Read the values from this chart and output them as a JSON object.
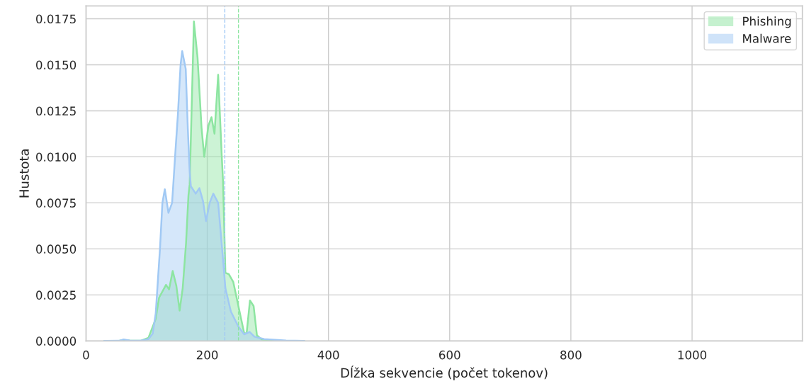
{
  "chart_data": {
    "type": "area",
    "xlabel": "Dĺžka sekvencie (počet tokenov)",
    "ylabel": "Hustota",
    "xlim": [
      0,
      1182
    ],
    "ylim": [
      0,
      0.0182
    ],
    "xticks": [
      0,
      200,
      400,
      600,
      800,
      1000
    ],
    "yticks": [
      {
        "value": 0,
        "label": "0.0000"
      },
      {
        "value": 0.0025,
        "label": "0.0025"
      },
      {
        "value": 0.005,
        "label": "0.0050"
      },
      {
        "value": 0.0075,
        "label": "0.0075"
      },
      {
        "value": 0.01,
        "label": "0.0100"
      },
      {
        "value": 0.0125,
        "label": "0.0125"
      },
      {
        "value": 0.015,
        "label": "0.0150"
      },
      {
        "value": 0.0175,
        "label": "0.0175"
      }
    ],
    "grid": true,
    "legend": "top right",
    "series": [
      {
        "name": "Phishing",
        "color": "#8de5a1",
        "x": [
          30,
          55,
          62,
          72,
          90,
          103,
          115,
          120.5,
          132,
          137,
          143,
          149,
          154.4,
          159.5,
          165,
          169,
          171,
          178,
          184,
          190.6,
          195,
          202,
          207,
          212,
          218,
          224,
          226,
          230,
          235.5,
          243,
          251,
          261,
          265,
          270.5,
          276.5,
          282,
          290,
          320,
          360
        ],
        "values": [
          0,
          1e-05,
          5e-05,
          2e-05,
          1e-05,
          0.00017,
          0.0012,
          0.00235,
          0.00305,
          0.0028,
          0.0038,
          0.003,
          0.00165,
          0.00286,
          0.0053,
          0.0079,
          0.0085,
          0.01735,
          0.0154,
          0.01158,
          0.01,
          0.0117,
          0.01215,
          0.01126,
          0.01446,
          0.01,
          0.0087,
          0.0037,
          0.00363,
          0.0032,
          0.00196,
          0.00042,
          0.00042,
          0.0022,
          0.0019,
          0.0003,
          8e-05,
          1e-05,
          0
        ]
      },
      {
        "name": "Malware",
        "color": "#a1c9f4",
        "x": [
          30,
          55,
          62,
          72,
          90,
          103,
          110,
          115,
          119,
          122,
          126,
          130,
          136,
          142,
          148,
          151.6,
          156,
          158.7,
          164.5,
          168,
          171,
          173,
          181,
          187,
          193,
          198,
          204,
          210,
          218,
          224,
          230,
          239,
          251,
          261,
          270,
          278,
          294,
          330,
          360
        ],
        "values": [
          0,
          1e-05,
          8e-05,
          2e-05,
          1e-05,
          0.0001,
          0.0004,
          0.0015,
          0.0035,
          0.005,
          0.0075,
          0.00824,
          0.00696,
          0.0075,
          0.01055,
          0.0123,
          0.015,
          0.01574,
          0.01478,
          0.0115,
          0.0092,
          0.0084,
          0.008,
          0.0083,
          0.0076,
          0.00651,
          0.0075,
          0.008,
          0.0075,
          0.0052,
          0.00286,
          0.0016,
          0.0008,
          0.00036,
          0.00049,
          0.00023,
          0.0001,
          2e-05,
          0
        ]
      }
    ],
    "ref_lines": [
      {
        "axis": "x",
        "value": 229,
        "color": "#a1c9f4",
        "line_style": "dashed"
      },
      {
        "axis": "x",
        "value": 251.5,
        "color": "#8de5a1",
        "line_style": "dashed"
      }
    ]
  }
}
